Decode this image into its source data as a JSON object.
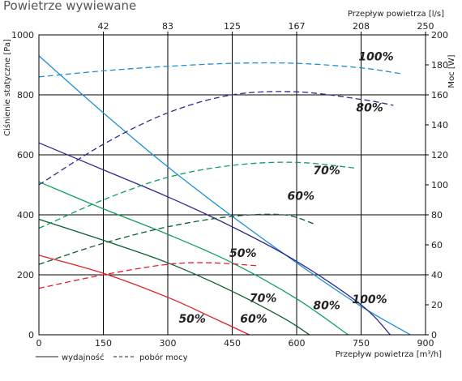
{
  "chart_data": {
    "type": "line",
    "title": "Powietrze wywiewane",
    "xlabel": "Przepływ powietrza [m³/h]",
    "x2label": "Przepływ powietrza [l/s]",
    "ylabel": "Ciśnienie statyczne [Pa]",
    "y2label": "Moc [W]",
    "xlim": [
      0,
      900
    ],
    "ylim": [
      0,
      1000
    ],
    "y2lim": [
      0,
      200
    ],
    "xticks": [
      "0",
      "150",
      "300",
      "450",
      "600",
      "750",
      "900"
    ],
    "x2ticks": [
      "42",
      "83",
      "125",
      "167",
      "208",
      "250"
    ],
    "yticks": [
      "0",
      "200",
      "400",
      "600",
      "800",
      "1000"
    ],
    "y2ticks": [
      "0",
      "20",
      "40",
      "60",
      "80",
      "100",
      "120",
      "140",
      "160",
      "180",
      "200"
    ],
    "grid": true,
    "legend": [
      {
        "label": "wydajność",
        "style": "solid"
      },
      {
        "label": "pobór mocy",
        "style": "dashed"
      }
    ],
    "series": [
      {
        "label": "100%",
        "kind": "pressure",
        "color": "#1e8fd2",
        "axis": "left",
        "x": [
          0,
          150,
          300,
          450,
          600,
          750,
          865
        ],
        "y": [
          930,
          740,
          560,
          395,
          240,
          95,
          0
        ]
      },
      {
        "label": "80%",
        "kind": "pressure",
        "color": "#2e2a8c",
        "axis": "left",
        "x": [
          0,
          150,
          300,
          450,
          600,
          750,
          818
        ],
        "y": [
          640,
          550,
          460,
          360,
          245,
          100,
          0
        ]
      },
      {
        "label": "70%",
        "kind": "pressure",
        "color": "#0fa05a",
        "axis": "left",
        "x": [
          0,
          150,
          300,
          450,
          600,
          720
        ],
        "y": [
          510,
          420,
          335,
          240,
          120,
          0
        ]
      },
      {
        "label": "60%",
        "kind": "pressure",
        "color": "#0d5e2e",
        "axis": "left",
        "x": [
          0,
          150,
          300,
          450,
          570,
          630
        ],
        "y": [
          385,
          315,
          240,
          145,
          55,
          0
        ]
      },
      {
        "label": "50%",
        "kind": "pressure",
        "color": "#e0202a",
        "axis": "left",
        "x": [
          0,
          150,
          300,
          400,
          490
        ],
        "y": [
          265,
          205,
          125,
          60,
          0
        ]
      },
      {
        "label": "100%",
        "kind": "power",
        "color": "#1e8fd2",
        "axis": "right",
        "x": [
          0,
          150,
          300,
          450,
          600,
          750,
          845
        ],
        "y": [
          172,
          176,
          179,
          181,
          181,
          178,
          174
        ]
      },
      {
        "label": "80%",
        "kind": "power",
        "color": "#2e2a8c",
        "axis": "right",
        "x": [
          0,
          150,
          300,
          450,
          600,
          750,
          825
        ],
        "y": [
          100,
          127,
          148,
          160,
          162,
          157,
          153
        ]
      },
      {
        "label": "70%",
        "kind": "power",
        "color": "#0fa05a",
        "axis": "right",
        "x": [
          0,
          150,
          300,
          450,
          600,
          740
        ],
        "y": [
          71,
          90,
          105,
          113,
          115,
          111
        ]
      },
      {
        "label": "60%",
        "kind": "power",
        "color": "#0d5e2e",
        "axis": "right",
        "x": [
          0,
          150,
          300,
          450,
          570,
          640
        ],
        "y": [
          47,
          61,
          72,
          79,
          80,
          74
        ]
      },
      {
        "label": "50%",
        "kind": "power",
        "color": "#e0202a",
        "axis": "right",
        "x": [
          0,
          150,
          300,
          400,
          510
        ],
        "y": [
          31,
          40,
          47,
          48,
          46
        ]
      }
    ],
    "curve_labels": [
      {
        "text": "100%",
        "x": 785,
        "y": 915
      },
      {
        "text": "80%",
        "x": 770,
        "y": 745
      },
      {
        "text": "70%",
        "x": 670,
        "y": 535
      },
      {
        "text": "60%",
        "x": 610,
        "y": 450
      },
      {
        "text": "50%",
        "x": 475,
        "y": 260
      },
      {
        "text": "100%",
        "x": 770,
        "y": 105
      },
      {
        "text": "80%",
        "x": 670,
        "y": 85
      },
      {
        "text": "70%",
        "x": 522,
        "y": 110
      },
      {
        "text": "60%",
        "x": 500,
        "y": 40
      },
      {
        "text": "50%",
        "x": 357,
        "y": 40
      }
    ]
  }
}
